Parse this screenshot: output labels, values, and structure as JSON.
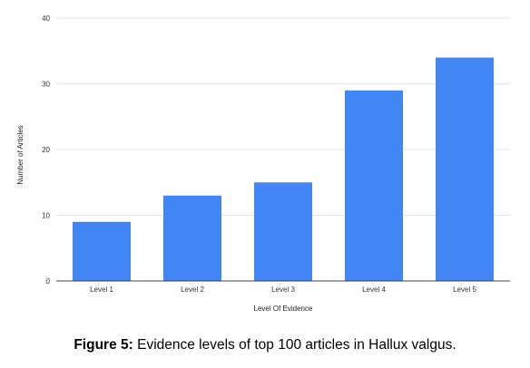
{
  "chart_data": {
    "type": "bar",
    "categories": [
      "Level 1",
      "Level 2",
      "Level 3",
      "Level 4",
      "Level 5"
    ],
    "values": [
      9,
      13,
      15,
      29,
      34
    ],
    "xlabel": "Level Of Evidence",
    "ylabel": "Number of Articles",
    "ylim": [
      0,
      40
    ],
    "yticks": [
      0,
      10,
      20,
      30,
      40
    ],
    "grid": true,
    "bar_color": "#4285f4"
  },
  "caption": {
    "label": "Figure 5:",
    "text": "Evidence levels of top 100 articles in Hallux valgus."
  }
}
